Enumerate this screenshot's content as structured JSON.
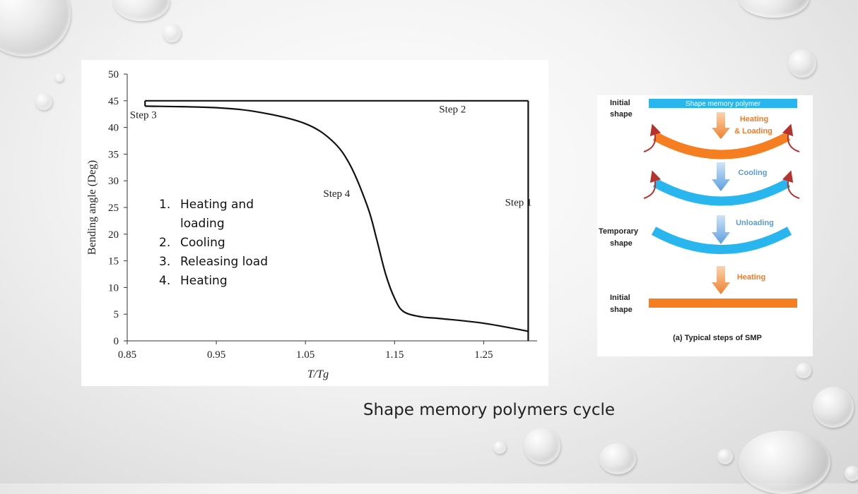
{
  "slide": {
    "caption": "Shape memory polymers cycle"
  },
  "chart_data": {
    "type": "line",
    "xlabel": "T/Tg",
    "ylabel": "Bending angle (Deg)",
    "xlim": [
      0.85,
      1.31
    ],
    "ylim": [
      0,
      50
    ],
    "x_ticks": [
      "0.85",
      "0.95",
      "1.05",
      "1.15",
      "1.25"
    ],
    "y_ticks": [
      "0",
      "5",
      "10",
      "15",
      "20",
      "25",
      "30",
      "35",
      "40",
      "45",
      "50"
    ],
    "grid": false,
    "series": [
      {
        "segment": "step1",
        "x": [
          1.3,
          1.3
        ],
        "y": [
          0,
          45
        ]
      },
      {
        "segment": "step2",
        "x": [
          1.3,
          0.87
        ],
        "y": [
          45,
          45
        ]
      },
      {
        "segment": "step3",
        "x": [
          0.87,
          0.87
        ],
        "y": [
          45,
          44
        ]
      },
      {
        "segment": "step4",
        "x": [
          0.87,
          0.95,
          1.0,
          1.05,
          1.08,
          1.1,
          1.12,
          1.13,
          1.14,
          1.15,
          1.16,
          1.18,
          1.2,
          1.25,
          1.3
        ],
        "y": [
          44,
          43.7,
          42.8,
          40.7,
          37.5,
          33,
          25,
          19,
          12.5,
          8,
          5.5,
          4.5,
          4.2,
          3.3,
          1.8
        ]
      }
    ],
    "annotations": [
      {
        "text": "Step 1",
        "x": 1.274,
        "y": 25.3
      },
      {
        "text": "Step 2",
        "x": 1.2,
        "y": 42.8
      },
      {
        "text": "Step 3",
        "x": 0.853,
        "y": 41.7
      },
      {
        "text": "Step 4",
        "x": 1.07,
        "y": 27.0
      }
    ],
    "legend_items": [
      {
        "num": "1.",
        "text": "Heating and loading"
      },
      {
        "num": "2.",
        "text": "Cooling"
      },
      {
        "num": "3.",
        "text": "Releasing load"
      },
      {
        "num": "4.",
        "text": "Heating"
      }
    ]
  },
  "diagram": {
    "labels": {
      "initial_top": [
        "Initial",
        "shape"
      ],
      "temporary": [
        "Temporary",
        "shape"
      ],
      "initial_bottom": [
        "Initial",
        "shape"
      ],
      "bar_text": "Shape memory polymer",
      "step_heating_loading": [
        "Heating",
        "& Loading"
      ],
      "step_cooling": "Cooling",
      "step_unloading": "Unloading",
      "step_heating": "Heating",
      "caption": "(a) Typical steps of SMP"
    },
    "colors": {
      "blue": "#29b6ef",
      "orange": "#f57e20",
      "arrow_orange": "#f08a3c",
      "arrow_blue": "#6aa8e0",
      "red_arrow": "#b5332e",
      "text_orange": "#f37c2c",
      "text_blue": "#5a9bd8"
    }
  }
}
